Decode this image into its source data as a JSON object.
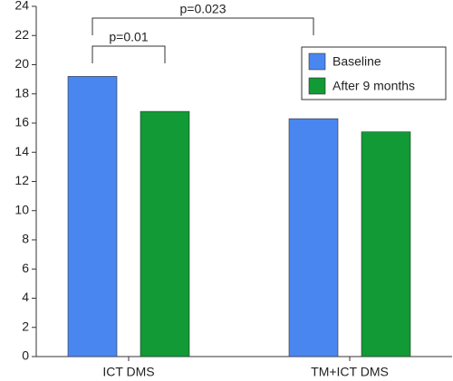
{
  "chart_data": {
    "type": "bar",
    "categories": [
      "ICT DMS",
      "TM+ICT DMS"
    ],
    "series": [
      {
        "name": "Baseline",
        "color": "#4a86f0",
        "values": [
          19.2,
          16.3
        ]
      },
      {
        "name": "After 9 months",
        "color": "#119a35",
        "values": [
          16.8,
          15.4
        ]
      }
    ],
    "ylim": [
      0,
      24
    ],
    "yticks": [
      0,
      2,
      4,
      6,
      8,
      10,
      12,
      14,
      16,
      18,
      20,
      22,
      24
    ],
    "annotations": [
      "p=0.01",
      "p=0.023"
    ],
    "legend": "upper right"
  }
}
